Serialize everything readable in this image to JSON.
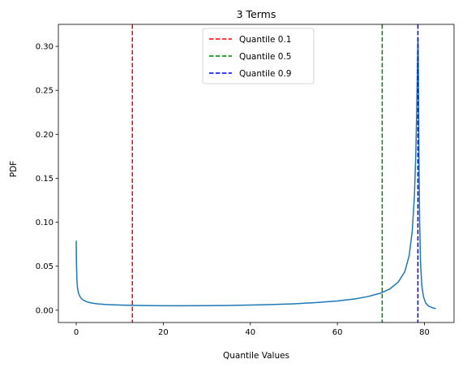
{
  "chart_data": {
    "type": "line",
    "title": "3 Terms",
    "xlabel": "Quantile Values",
    "ylabel": "PDF",
    "xlim": [
      -4.1,
      86.8
    ],
    "ylim": [
      -0.014,
      0.325
    ],
    "xticks": [
      0,
      20,
      40,
      60,
      80
    ],
    "xtick_labels": [
      "0",
      "20",
      "40",
      "60",
      "80"
    ],
    "yticks": [
      0.0,
      0.05,
      0.1,
      0.15,
      0.2,
      0.25,
      0.3
    ],
    "ytick_labels": [
      "0.00",
      "0.05",
      "0.10",
      "0.15",
      "0.20",
      "0.25",
      "0.30"
    ],
    "grid": false,
    "legend_position": "upper center",
    "series": [
      {
        "color": "#1f77b4",
        "x": [
          0,
          0.05,
          0.15,
          0.3,
          0.5,
          0.8,
          1.2,
          1.8,
          2.5,
          3.5,
          5,
          7,
          10,
          13,
          16,
          20,
          25,
          30,
          35,
          40,
          45,
          50,
          55,
          60,
          64,
          67,
          70,
          72,
          74,
          75.5,
          76.5,
          77.2,
          77.7,
          78.0,
          78.2,
          78.35,
          78.45,
          78.52,
          78.58,
          78.65,
          78.75,
          78.9,
          79.1,
          79.4,
          79.8,
          80.3,
          81.0,
          82.0,
          82.6
        ],
        "y": [
          0.079,
          0.055,
          0.035,
          0.025,
          0.02,
          0.016,
          0.013,
          0.011,
          0.0095,
          0.0082,
          0.0071,
          0.0064,
          0.0058,
          0.0055,
          0.0053,
          0.0051,
          0.0051,
          0.0052,
          0.0054,
          0.0058,
          0.0064,
          0.0073,
          0.0086,
          0.0105,
          0.0128,
          0.0155,
          0.0195,
          0.024,
          0.032,
          0.044,
          0.062,
          0.09,
          0.13,
          0.175,
          0.22,
          0.265,
          0.295,
          0.31,
          0.29,
          0.24,
          0.17,
          0.1,
          0.055,
          0.028,
          0.015,
          0.008,
          0.0045,
          0.0025,
          0.0018
        ]
      }
    ],
    "vlines": [
      {
        "name": "Quantile 0.1",
        "x": 12.9,
        "color": "#ff0000"
      },
      {
        "name": "Quantile 0.5",
        "x": 70.3,
        "color": "#008000"
      },
      {
        "name": "Quantile 0.9",
        "x": 78.5,
        "color": "#0000ff"
      }
    ]
  }
}
